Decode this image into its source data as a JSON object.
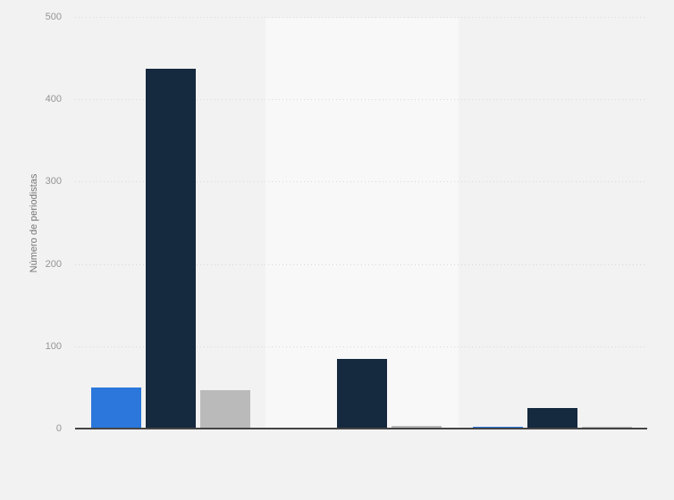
{
  "chart_data": {
    "type": "bar",
    "title": "",
    "xlabel": "",
    "ylabel": "Número de periodistas",
    "ylim": [
      0,
      500
    ],
    "yticks": [
      0,
      100,
      200,
      300,
      400,
      500
    ],
    "grid": "horizontal-dotted",
    "legend_position": "none-visible",
    "categories": [
      "",
      "",
      ""
    ],
    "series": [
      {
        "name": "blue",
        "color": "#2b77dc",
        "values": [
          50,
          1,
          2
        ]
      },
      {
        "name": "dark-navy",
        "color": "#15293f",
        "values": [
          437,
          85,
          25
        ]
      },
      {
        "name": "gray",
        "color": "#bababa",
        "values": [
          47,
          3,
          2
        ]
      }
    ],
    "colors": {
      "background": "#f2f2f2",
      "highlight_band": "#f8f8f8",
      "gridline": "#d9d9d9",
      "baseline": "#444444",
      "tick_label": "#949494",
      "axis_label": "#767676"
    }
  }
}
